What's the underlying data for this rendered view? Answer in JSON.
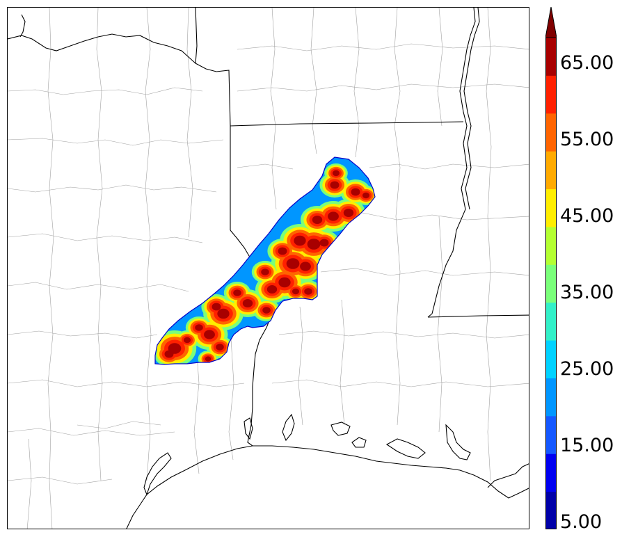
{
  "colorbar": {
    "labels": [
      "5.00",
      "15.00",
      "25.00",
      "35.00",
      "45.00",
      "55.00",
      "65.00"
    ],
    "levels": [
      5,
      10,
      15,
      20,
      25,
      30,
      35,
      40,
      45,
      50,
      55,
      60,
      65,
      70
    ],
    "colors": [
      "#0000a8",
      "#0000f0",
      "#1458ff",
      "#0096ff",
      "#00d2ff",
      "#32f0c8",
      "#7aff7a",
      "#b4ff32",
      "#ffee00",
      "#ffaa00",
      "#ff6400",
      "#ff2000",
      "#a80000"
    ],
    "extend": "max",
    "extend_color": "#800000"
  },
  "map": {
    "land_color": "#ffffff",
    "state_border_color": "#000000",
    "county_border_color": "#a0a0a0"
  }
}
